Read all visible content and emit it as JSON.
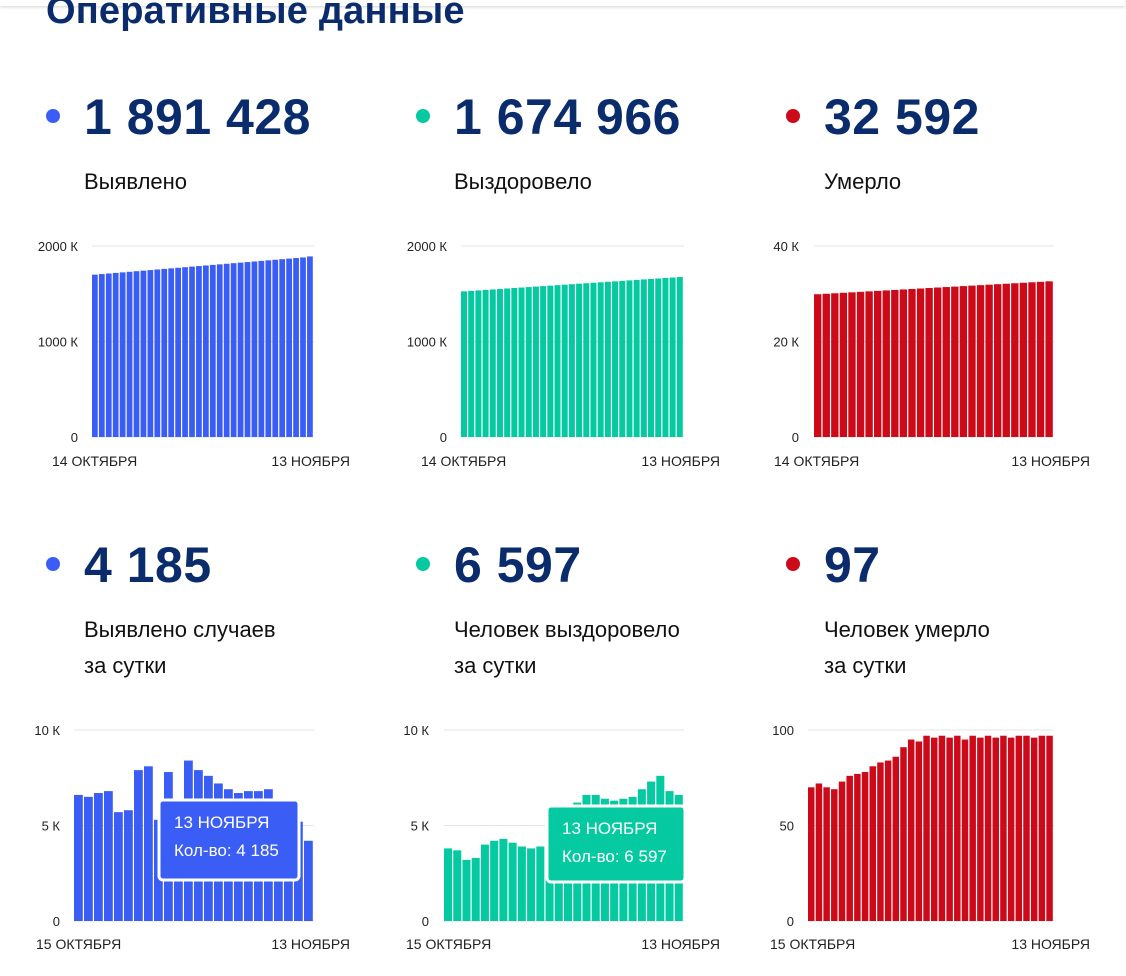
{
  "page": {
    "title": "Оперативные данные"
  },
  "colors": {
    "blue": "#3a5df5",
    "green": "#05c9a0",
    "red": "#cc0a19",
    "title": "#0b2c6c"
  },
  "panels": [
    {
      "value": "1 891 428",
      "label_lines": [
        "Выявлено"
      ],
      "color": "#3a5df5",
      "chart_data": {
        "type": "bar",
        "ylim": [
          0,
          2000
        ],
        "yticks": [
          0,
          1000,
          2000
        ],
        "ytick_labels": [
          "0",
          "1000 К",
          "2000 К"
        ],
        "x_start_label": "14 ОКТЯБРЯ",
        "x_end_label": "13 НОЯБРЯ",
        "values": [
          1700,
          1706,
          1712,
          1718,
          1724,
          1730,
          1736,
          1742,
          1748,
          1754,
          1760,
          1766,
          1772,
          1778,
          1784,
          1790,
          1796,
          1802,
          1808,
          1814,
          1820,
          1826,
          1832,
          1838,
          1844,
          1850,
          1856,
          1862,
          1868,
          1874,
          1880,
          1891
        ]
      }
    },
    {
      "value": "1 674 966",
      "label_lines": [
        "Выздоровело"
      ],
      "color": "#05c9a0",
      "chart_data": {
        "type": "bar",
        "ylim": [
          0,
          2000
        ],
        "yticks": [
          0,
          1000,
          2000
        ],
        "ytick_labels": [
          "0",
          "1000 К",
          "2000 К"
        ],
        "x_start_label": "14 ОКТЯБРЯ",
        "x_end_label": "13 НОЯБРЯ",
        "values": [
          1525,
          1530,
          1535,
          1540,
          1545,
          1550,
          1555,
          1560,
          1565,
          1570,
          1575,
          1580,
          1585,
          1590,
          1595,
          1600,
          1605,
          1610,
          1615,
          1620,
          1625,
          1630,
          1635,
          1640,
          1645,
          1650,
          1655,
          1660,
          1665,
          1670,
          1675
        ]
      }
    },
    {
      "value": "32 592",
      "label_lines": [
        "Умерло"
      ],
      "color": "#cc0a19",
      "chart_data": {
        "type": "bar",
        "ylim": [
          0,
          40
        ],
        "yticks": [
          0,
          20,
          40
        ],
        "ytick_labels": [
          "0",
          "20 К",
          "40 К"
        ],
        "x_start_label": "14 ОКТЯБРЯ",
        "x_end_label": "13 НОЯБРЯ",
        "values": [
          29.9,
          30.0,
          30.1,
          30.2,
          30.3,
          30.4,
          30.5,
          30.6,
          30.7,
          30.8,
          30.9,
          31.0,
          31.1,
          31.2,
          31.3,
          31.4,
          31.5,
          31.6,
          31.7,
          31.8,
          31.9,
          32.0,
          32.1,
          32.2,
          32.3,
          32.4,
          32.5,
          32.6
        ]
      }
    },
    {
      "value": "4 185",
      "label_lines": [
        "Выявлено случаев",
        "за сутки"
      ],
      "color": "#3a5df5",
      "chart_data": {
        "type": "bar",
        "ylim": [
          0,
          10
        ],
        "yticks": [
          0,
          5,
          10
        ],
        "ytick_labels": [
          "0",
          "5 К",
          "10 К"
        ],
        "x_start_label": "15 ОКТЯБРЯ",
        "x_end_label": "13 НОЯБРЯ",
        "values": [
          6.6,
          6.5,
          6.7,
          6.8,
          5.7,
          5.8,
          7.9,
          8.1,
          5.3,
          7.8,
          5.8,
          8.4,
          7.9,
          7.6,
          7.2,
          6.9,
          6.7,
          6.8,
          6.8,
          6.9,
          6.2,
          6.1,
          5.2,
          4.2
        ],
        "tooltip": {
          "date": "13 НОЯБРЯ",
          "text": "Кол-во: 4 185"
        }
      }
    },
    {
      "value": "6 597",
      "label_lines": [
        "Человек выздоровело",
        "за сутки"
      ],
      "color": "#05c9a0",
      "chart_data": {
        "type": "bar",
        "ylim": [
          0,
          10
        ],
        "yticks": [
          0,
          5,
          10
        ],
        "ytick_labels": [
          "0",
          "5 К",
          "10 К"
        ],
        "x_start_label": "15 ОКТЯБРЯ",
        "x_end_label": "13 НОЯБРЯ",
        "values": [
          3.8,
          3.7,
          3.2,
          3.3,
          4.0,
          4.2,
          4.3,
          4.1,
          3.9,
          3.8,
          3.9,
          4.5,
          5.3,
          5.8,
          6.2,
          6.6,
          6.6,
          6.4,
          6.3,
          6.4,
          6.5,
          6.9,
          7.3,
          7.6,
          6.8,
          6.6
        ],
        "tooltip": {
          "date": "13 НОЯБРЯ",
          "text": "Кол-во: 6 597"
        }
      }
    },
    {
      "value": "97",
      "label_lines": [
        "Человек умерло",
        "за сутки"
      ],
      "color": "#cc0a19",
      "chart_data": {
        "type": "bar",
        "ylim": [
          0,
          100
        ],
        "yticks": [
          0,
          50,
          100
        ],
        "ytick_labels": [
          "0",
          "50",
          "100"
        ],
        "x_start_label": "15 ОКТЯБРЯ",
        "x_end_label": "13 НОЯБРЯ",
        "values": [
          70,
          72,
          70,
          69,
          73,
          76,
          77,
          78,
          81,
          83,
          84,
          86,
          91,
          95,
          94,
          97,
          96,
          97,
          96,
          97,
          95,
          97,
          96,
          97,
          96,
          97,
          96,
          97,
          97,
          96,
          97,
          97
        ]
      }
    }
  ]
}
